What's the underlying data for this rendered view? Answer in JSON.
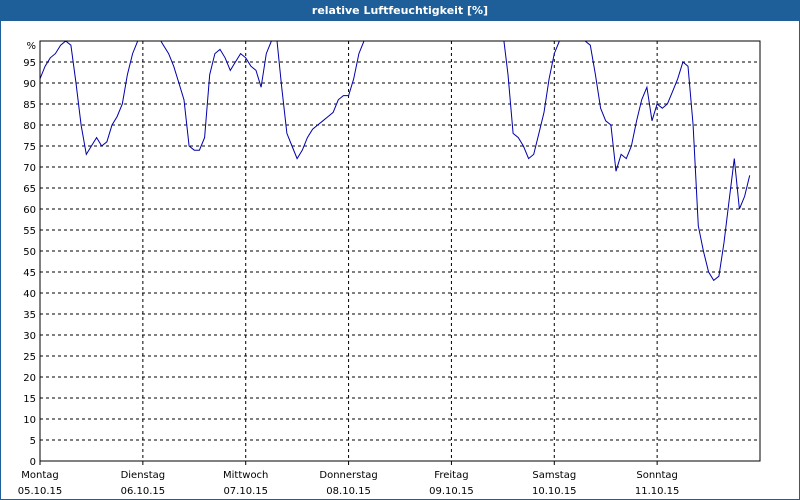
{
  "colors": {
    "title_bar": "#1f5f99",
    "title_text": "#ffffff",
    "line": "#0000aa",
    "grid": "#000000",
    "background": "#ffffff"
  },
  "chart_data": {
    "type": "line",
    "title": "relative Luftfeuchtigkeit [%]",
    "y_unit_label": "%",
    "ylim": [
      0,
      100
    ],
    "yticks": [
      0,
      5,
      10,
      15,
      20,
      25,
      30,
      35,
      40,
      45,
      50,
      55,
      60,
      65,
      70,
      75,
      80,
      85,
      90,
      95
    ],
    "xlim_days": [
      0,
      7
    ],
    "day_labels": [
      {
        "day": "Montag",
        "date": "05.10.15"
      },
      {
        "day": "Dienstag",
        "date": "06.10.15"
      },
      {
        "day": "Mittwoch",
        "date": "07.10.15"
      },
      {
        "day": "Donnerstag",
        "date": "08.10.15"
      },
      {
        "day": "Freitag",
        "date": "09.10.15"
      },
      {
        "day": "Samstag",
        "date": "10.10.15"
      },
      {
        "day": "Sonntag",
        "date": "11.10.15"
      }
    ],
    "grid": true,
    "series": [
      {
        "points": [
          [
            0.0,
            91
          ],
          [
            0.05,
            94
          ],
          [
            0.1,
            96
          ],
          [
            0.15,
            97
          ],
          [
            0.2,
            99
          ],
          [
            0.25,
            100
          ],
          [
            0.3,
            99
          ],
          [
            0.35,
            90
          ],
          [
            0.4,
            80
          ],
          [
            0.45,
            73
          ],
          [
            0.5,
            75
          ],
          [
            0.55,
            77
          ],
          [
            0.6,
            75
          ],
          [
            0.65,
            76
          ],
          [
            0.7,
            80
          ],
          [
            0.75,
            82
          ],
          [
            0.8,
            85
          ],
          [
            0.85,
            92
          ],
          [
            0.9,
            97
          ],
          [
            0.95,
            100
          ],
          [
            1.0,
            101
          ],
          [
            1.05,
            102
          ],
          [
            1.1,
            102
          ],
          [
            1.15,
            101
          ],
          [
            1.2,
            99
          ],
          [
            1.25,
            97
          ],
          [
            1.3,
            94
          ],
          [
            1.35,
            90
          ],
          [
            1.4,
            86
          ],
          [
            1.45,
            75
          ],
          [
            1.5,
            74
          ],
          [
            1.55,
            74
          ],
          [
            1.6,
            77
          ],
          [
            1.65,
            92
          ],
          [
            1.7,
            97
          ],
          [
            1.75,
            98
          ],
          [
            1.8,
            96
          ],
          [
            1.85,
            93
          ],
          [
            1.9,
            95
          ],
          [
            1.95,
            97
          ],
          [
            2.0,
            96
          ],
          [
            2.05,
            94
          ],
          [
            2.1,
            93
          ],
          [
            2.15,
            89
          ],
          [
            2.2,
            97
          ],
          [
            2.25,
            100
          ],
          [
            2.3,
            101
          ],
          [
            2.35,
            89
          ],
          [
            2.4,
            78
          ],
          [
            2.45,
            75
          ],
          [
            2.5,
            72
          ],
          [
            2.55,
            74
          ],
          [
            2.6,
            77
          ],
          [
            2.65,
            79
          ],
          [
            2.7,
            80
          ],
          [
            2.75,
            81
          ],
          [
            2.8,
            82
          ],
          [
            2.85,
            83
          ],
          [
            2.9,
            86
          ],
          [
            2.95,
            87
          ],
          [
            3.0,
            87
          ],
          [
            3.05,
            91
          ],
          [
            3.1,
            97
          ],
          [
            3.15,
            100
          ],
          [
            3.2,
            101
          ],
          [
            3.25,
            102
          ],
          [
            3.3,
            102
          ],
          [
            3.35,
            102
          ],
          [
            3.4,
            102
          ],
          [
            3.45,
            102
          ],
          [
            3.5,
            102
          ],
          [
            3.55,
            102
          ],
          [
            3.6,
            102
          ],
          [
            3.65,
            102
          ],
          [
            3.7,
            102
          ],
          [
            3.75,
            102
          ],
          [
            3.8,
            102
          ],
          [
            3.85,
            102
          ],
          [
            3.9,
            102
          ],
          [
            3.95,
            102
          ],
          [
            4.0,
            102
          ],
          [
            4.05,
            102
          ],
          [
            4.1,
            102
          ],
          [
            4.15,
            102
          ],
          [
            4.2,
            102
          ],
          [
            4.25,
            102
          ],
          [
            4.3,
            102
          ],
          [
            4.35,
            102
          ],
          [
            4.4,
            102
          ],
          [
            4.45,
            102
          ],
          [
            4.5,
            102
          ],
          [
            4.55,
            92
          ],
          [
            4.6,
            78
          ],
          [
            4.65,
            77
          ],
          [
            4.7,
            75
          ],
          [
            4.75,
            72
          ],
          [
            4.8,
            73
          ],
          [
            4.85,
            78
          ],
          [
            4.9,
            83
          ],
          [
            4.95,
            91
          ],
          [
            5.0,
            97
          ],
          [
            5.05,
            100
          ],
          [
            5.1,
            100
          ],
          [
            5.15,
            100
          ],
          [
            5.2,
            100
          ],
          [
            5.25,
            100
          ],
          [
            5.3,
            100
          ],
          [
            5.35,
            99
          ],
          [
            5.4,
            92
          ],
          [
            5.45,
            84
          ],
          [
            5.5,
            81
          ],
          [
            5.55,
            80
          ],
          [
            5.6,
            69
          ],
          [
            5.65,
            73
          ],
          [
            5.7,
            72
          ],
          [
            5.75,
            75
          ],
          [
            5.8,
            81
          ],
          [
            5.85,
            86
          ],
          [
            5.9,
            89
          ],
          [
            5.95,
            81
          ],
          [
            6.0,
            85
          ],
          [
            6.05,
            84
          ],
          [
            6.1,
            85
          ],
          [
            6.15,
            88
          ],
          [
            6.2,
            91
          ],
          [
            6.25,
            95
          ],
          [
            6.3,
            94
          ],
          [
            6.35,
            80
          ],
          [
            6.4,
            56
          ],
          [
            6.45,
            50
          ],
          [
            6.5,
            45
          ],
          [
            6.55,
            43
          ],
          [
            6.6,
            44
          ],
          [
            6.65,
            52
          ],
          [
            6.7,
            62
          ],
          [
            6.75,
            72
          ],
          [
            6.8,
            60
          ],
          [
            6.85,
            63
          ],
          [
            6.9,
            68
          ]
        ]
      }
    ]
  }
}
